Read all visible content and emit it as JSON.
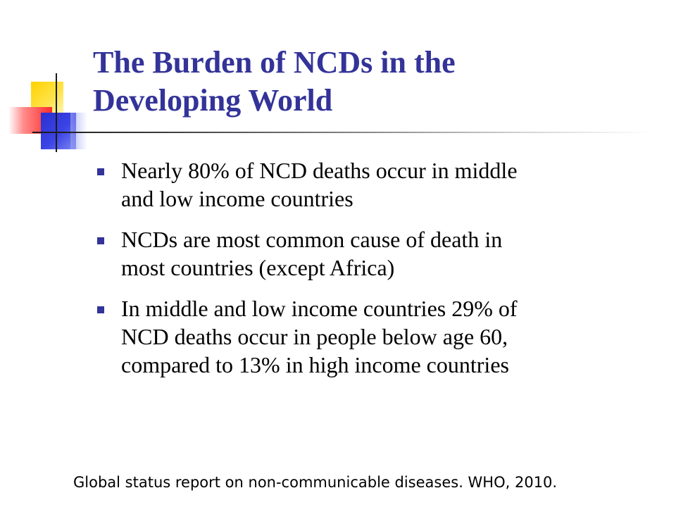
{
  "slide": {
    "title_lines": [
      "The Burden of NCDs in the",
      "Developing World"
    ],
    "bullets": [
      {
        "lines": [
          "Nearly 80% of NCD deaths occur in middle",
          "and low income countries"
        ]
      },
      {
        "lines": [
          "NCDs are most common cause of death in",
          "most countries (except Africa)"
        ]
      },
      {
        "lines": [
          "In middle and low income countries 29% of",
          "NCD deaths occur in people below age 60,",
          "compared to 13% in high income countries"
        ]
      }
    ],
    "citation": "Global status report on non-communicable diseases.  WHO, 2010."
  },
  "colors": {
    "title": "#333399",
    "bullet_marker": "#333399",
    "body_text": "#000000",
    "logo_yellow": "#ffd200",
    "logo_red": "#ff2b2b",
    "logo_blue": "#2a2fd0"
  },
  "icons": {
    "logo": "decorative-colored-squares-icon",
    "bullet": "square-bullet-icon"
  }
}
